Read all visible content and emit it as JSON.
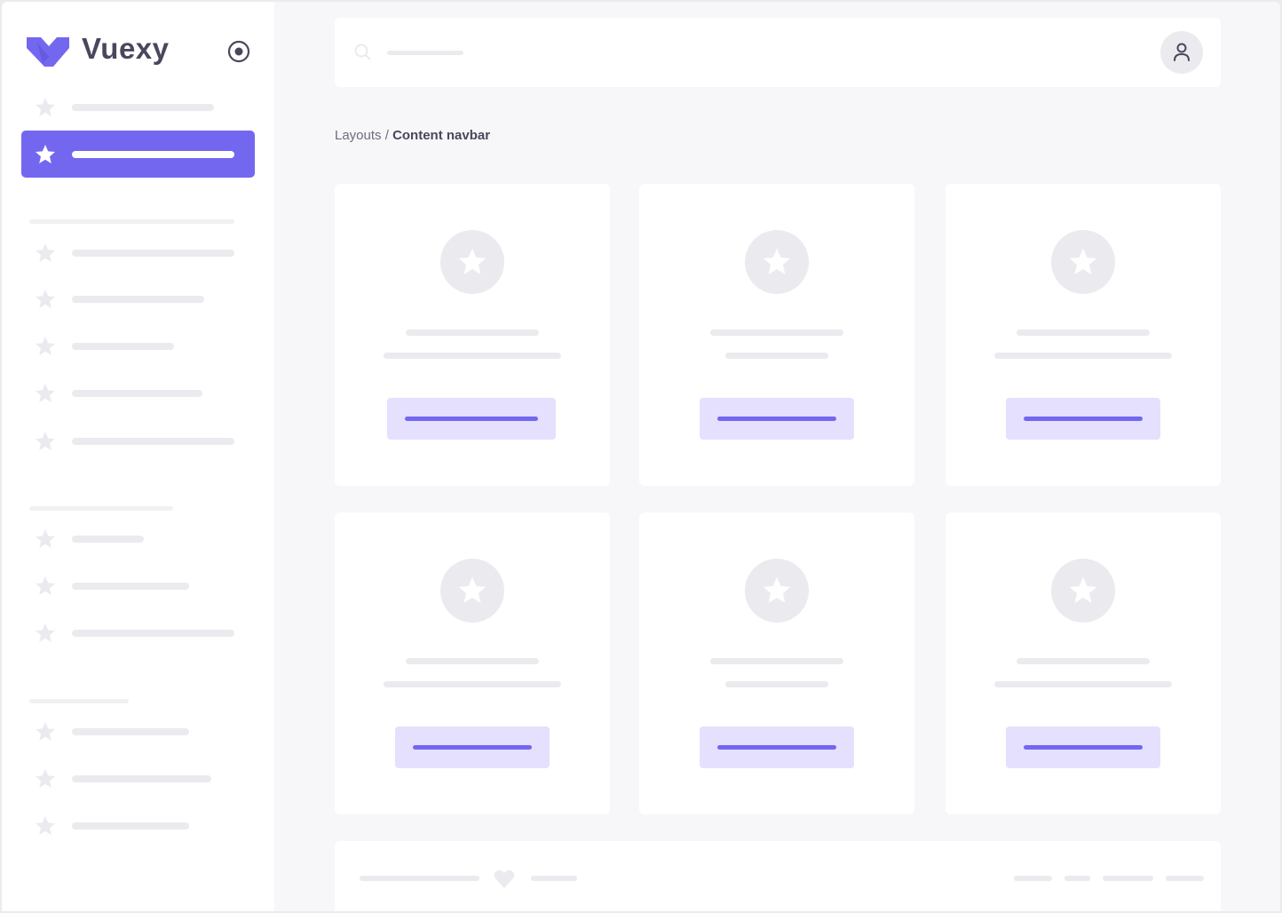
{
  "sidebar": {
    "brand": "Vuexy",
    "brand_color": "#7367f0",
    "toggle_icon": "radio-circle-icon",
    "item_icon": "star-icon"
  },
  "header": {
    "search_icon": "search-icon",
    "user_icon": "user-icon"
  },
  "breadcrumb": {
    "parent": "Layouts",
    "separator": " / ",
    "current": "Content navbar"
  },
  "footer": {
    "heart_icon": "heart-icon"
  },
  "colors": {
    "primary": "#7367f0",
    "primary_light": "#e4e0fd",
    "placeholder": "#ebebef",
    "background": "#f7f7f9",
    "text": "#4b465c"
  }
}
